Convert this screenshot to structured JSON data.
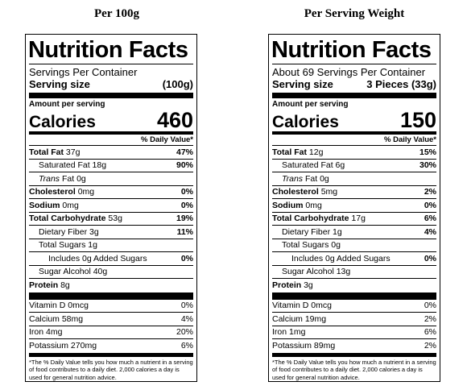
{
  "headings": {
    "left": "Per 100g",
    "right": "Per Serving Weight"
  },
  "panels": [
    {
      "title": "Nutrition Facts",
      "servings_per_container": "Servings Per Container",
      "serving_size_label": "Serving size",
      "serving_size_value": "(100g)",
      "amount_per_serving": "Amount per serving",
      "calories_label": "Calories",
      "calories_value": "460",
      "daily_value_header": "% Daily Value*",
      "total_fat": {
        "label": "Total Fat",
        "amount": "37g",
        "dv": "47%"
      },
      "saturated_fat": {
        "label": "Saturated Fat 18g",
        "dv": "90%"
      },
      "trans_fat": {
        "label_italic": "Trans",
        "label": "Fat 0g"
      },
      "cholesterol": {
        "label": "Cholesterol",
        "amount": "0mg",
        "dv": "0%"
      },
      "sodium": {
        "label": "Sodium",
        "amount": "0mg",
        "dv": "0%"
      },
      "total_carb": {
        "label": "Total Carbohydrate",
        "amount": "53g",
        "dv": "19%"
      },
      "dietary_fiber": {
        "label": "Dietary Fiber 3g",
        "dv": "11%"
      },
      "total_sugars": {
        "label": "Total Sugars 1g"
      },
      "added_sugars": {
        "label": "Includes 0g Added Sugars",
        "dv": "0%"
      },
      "sugar_alcohol": {
        "label": "Sugar Alcohol 40g"
      },
      "protein": {
        "label": "Protein",
        "amount": "8g"
      },
      "vitamin_d": {
        "label": "Vitamin D 0mcg",
        "dv": "0%"
      },
      "calcium": {
        "label": "Calcium 58mg",
        "dv": "4%"
      },
      "iron": {
        "label": "Iron 4mg",
        "dv": "20%"
      },
      "potassium": {
        "label": "Potassium 270mg",
        "dv": "6%"
      },
      "footnote": "*The % Daily Value tells you how much a nutrient in a serving of food contributes to a daily diet. 2,000 calories a day is used for general nutrition advice."
    },
    {
      "title": "Nutrition Facts",
      "servings_per_container": "About 69 Servings Per Container",
      "serving_size_label": "Serving size",
      "serving_size_value": "3 Pieces (33g)",
      "amount_per_serving": "Amount per serving",
      "calories_label": "Calories",
      "calories_value": "150",
      "daily_value_header": "% Daily Value*",
      "total_fat": {
        "label": "Total Fat",
        "amount": "12g",
        "dv": "15%"
      },
      "saturated_fat": {
        "label": "Saturated Fat 6g",
        "dv": "30%"
      },
      "trans_fat": {
        "label_italic": "Trans",
        "label": "Fat 0g"
      },
      "cholesterol": {
        "label": "Cholesterol",
        "amount": "5mg",
        "dv": "2%"
      },
      "sodium": {
        "label": "Sodium",
        "amount": "0mg",
        "dv": "0%"
      },
      "total_carb": {
        "label": "Total Carbohydrate",
        "amount": "17g",
        "dv": "6%"
      },
      "dietary_fiber": {
        "label": "Dietary Fiber 1g",
        "dv": "4%"
      },
      "total_sugars": {
        "label": "Total Sugars 0g"
      },
      "added_sugars": {
        "label": "Includes 0g Added Sugars",
        "dv": "0%"
      },
      "sugar_alcohol": {
        "label": "Sugar Alcohol 13g"
      },
      "protein": {
        "label": "Protein",
        "amount": "3g"
      },
      "vitamin_d": {
        "label": "Vitamin D 0mcg",
        "dv": "0%"
      },
      "calcium": {
        "label": "Calcium 19mg",
        "dv": "2%"
      },
      "iron": {
        "label": "Iron 1mg",
        "dv": "6%"
      },
      "potassium": {
        "label": "Potassium 89mg",
        "dv": "2%"
      },
      "footnote": "*The % Daily Value tells you how much a nutrient in a serving of food contributes to a daily diet. 2,000 calories a day is used for general nutrition advice."
    }
  ]
}
